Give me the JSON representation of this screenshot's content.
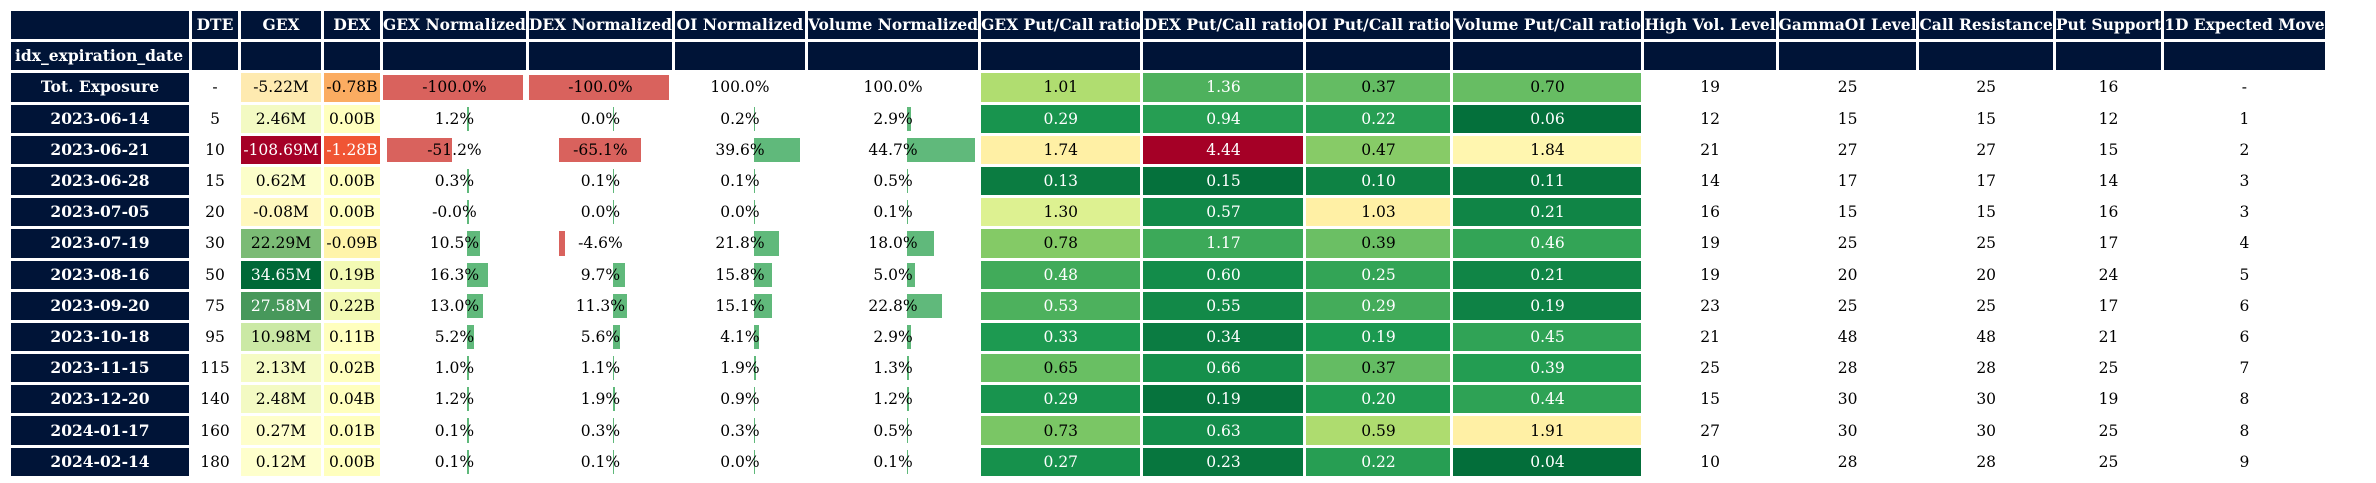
{
  "table": {
    "index_name": "idx_expiration_date",
    "columns": [
      "DTE",
      "GEX",
      "DEX",
      "GEX Normalized",
      "DEX Normalized",
      "OI Normalized",
      "Volume Normalized",
      "GEX Put/Call ratio",
      "DEX Put/Call ratio",
      "OI Put/Call ratio",
      "Volume Put/Call ratio",
      "High Vol. Level",
      "GammaOI Level",
      "Call Resistance",
      "Put Support",
      "1D Expected Move"
    ],
    "rows": [
      {
        "label": "Tot. Exposure",
        "cells": [
          "-",
          "-5.22M",
          "-0.78B",
          "-100.0%",
          "-100.0%",
          "100.0%",
          "100.0%",
          "1.01",
          "1.36",
          "0.37",
          "0.70",
          "19",
          "25",
          "25",
          "16",
          "-"
        ]
      },
      {
        "label": "2023-06-14",
        "cells": [
          "5",
          "2.46M",
          "0.00B",
          "1.2%",
          "0.0%",
          "0.2%",
          "2.9%",
          "0.29",
          "0.94",
          "0.22",
          "0.06",
          "12",
          "15",
          "15",
          "12",
          "1"
        ]
      },
      {
        "label": "2023-06-21",
        "cells": [
          "10",
          "-108.69M",
          "-1.28B",
          "-51.2%",
          "-65.1%",
          "39.6%",
          "44.7%",
          "1.74",
          "4.44",
          "0.47",
          "1.84",
          "21",
          "27",
          "27",
          "15",
          "2"
        ]
      },
      {
        "label": "2023-06-28",
        "cells": [
          "15",
          "0.62M",
          "0.00B",
          "0.3%",
          "0.1%",
          "0.1%",
          "0.5%",
          "0.13",
          "0.15",
          "0.10",
          "0.11",
          "14",
          "17",
          "17",
          "14",
          "3"
        ]
      },
      {
        "label": "2023-07-05",
        "cells": [
          "20",
          "-0.08M",
          "0.00B",
          "-0.0%",
          "0.0%",
          "0.0%",
          "0.1%",
          "1.30",
          "0.57",
          "1.03",
          "0.21",
          "16",
          "15",
          "15",
          "16",
          "3"
        ]
      },
      {
        "label": "2023-07-19",
        "cells": [
          "30",
          "22.29M",
          "-0.09B",
          "10.5%",
          "-4.6%",
          "21.8%",
          "18.0%",
          "0.78",
          "1.17",
          "0.39",
          "0.46",
          "19",
          "25",
          "25",
          "17",
          "4"
        ]
      },
      {
        "label": "2023-08-16",
        "cells": [
          "50",
          "34.65M",
          "0.19B",
          "16.3%",
          "9.7%",
          "15.8%",
          "5.0%",
          "0.48",
          "0.60",
          "0.25",
          "0.21",
          "19",
          "20",
          "20",
          "24",
          "5"
        ]
      },
      {
        "label": "2023-09-20",
        "cells": [
          "75",
          "27.58M",
          "0.22B",
          "13.0%",
          "11.3%",
          "15.1%",
          "22.8%",
          "0.53",
          "0.55",
          "0.29",
          "0.19",
          "23",
          "25",
          "25",
          "17",
          "6"
        ]
      },
      {
        "label": "2023-10-18",
        "cells": [
          "95",
          "10.98M",
          "0.11B",
          "5.2%",
          "5.6%",
          "4.1%",
          "2.9%",
          "0.33",
          "0.34",
          "0.19",
          "0.45",
          "21",
          "48",
          "48",
          "21",
          "6"
        ]
      },
      {
        "label": "2023-11-15",
        "cells": [
          "115",
          "2.13M",
          "0.02B",
          "1.0%",
          "1.1%",
          "1.9%",
          "1.3%",
          "0.65",
          "0.66",
          "0.37",
          "0.39",
          "25",
          "28",
          "28",
          "25",
          "7"
        ]
      },
      {
        "label": "2023-12-20",
        "cells": [
          "140",
          "2.48M",
          "0.04B",
          "1.2%",
          "1.9%",
          "0.9%",
          "1.2%",
          "0.29",
          "0.19",
          "0.20",
          "0.44",
          "15",
          "30",
          "30",
          "19",
          "8"
        ]
      },
      {
        "label": "2024-01-17",
        "cells": [
          "160",
          "0.27M",
          "0.01B",
          "0.1%",
          "0.3%",
          "0.3%",
          "0.5%",
          "0.73",
          "0.63",
          "0.59",
          "1.91",
          "27",
          "30",
          "30",
          "25",
          "8"
        ]
      },
      {
        "label": "2024-02-14",
        "cells": [
          "180",
          "0.12M",
          "0.00B",
          "0.1%",
          "0.1%",
          "0.0%",
          "0.1%",
          "0.27",
          "0.23",
          "0.22",
          "0.04",
          "10",
          "28",
          "28",
          "25",
          "9"
        ]
      }
    ]
  },
  "chart_data": {
    "type": "table",
    "index_name": "idx_expiration_date",
    "columns": [
      "DTE",
      "GEX",
      "DEX",
      "GEX Normalized",
      "DEX Normalized",
      "OI Normalized",
      "Volume Normalized",
      "GEX Put/Call ratio",
      "DEX Put/Call ratio",
      "OI Put/Call ratio",
      "Volume Put/Call ratio",
      "High Vol. Level",
      "GammaOI Level",
      "Call Resistance",
      "Put Support",
      "1D Expected Move"
    ],
    "row_labels": [
      "Tot. Exposure",
      "2023-06-14",
      "2023-06-21",
      "2023-06-28",
      "2023-07-05",
      "2023-07-19",
      "2023-08-16",
      "2023-09-20",
      "2023-10-18",
      "2023-11-15",
      "2023-12-20",
      "2024-01-17",
      "2024-02-14"
    ],
    "GEX_millions": [
      -5.22,
      2.46,
      -108.69,
      0.62,
      -0.08,
      22.29,
      34.65,
      27.58,
      10.98,
      2.13,
      2.48,
      0.27,
      0.12
    ],
    "DEX_billions": [
      -0.78,
      0.0,
      -1.28,
      0.0,
      0.0,
      -0.09,
      0.19,
      0.22,
      0.11,
      0.02,
      0.04,
      0.01,
      0.0
    ],
    "GEX_normalized_pct": [
      -100.0,
      1.2,
      -51.2,
      0.3,
      -0.0,
      10.5,
      16.3,
      13.0,
      5.2,
      1.0,
      1.2,
      0.1,
      0.1
    ],
    "DEX_normalized_pct": [
      -100.0,
      0.0,
      -65.1,
      0.1,
      0.0,
      -4.6,
      9.7,
      11.3,
      5.6,
      1.1,
      1.9,
      0.3,
      0.1
    ],
    "OI_normalized_pct": [
      100.0,
      0.2,
      39.6,
      0.1,
      0.0,
      21.8,
      15.8,
      15.1,
      4.1,
      1.9,
      0.9,
      0.3,
      0.0
    ],
    "Volume_normalized_pct": [
      100.0,
      2.9,
      44.7,
      0.5,
      0.1,
      18.0,
      5.0,
      22.8,
      2.9,
      1.3,
      1.2,
      0.5,
      0.1
    ],
    "GEX_put_call_ratio": [
      1.01,
      0.29,
      1.74,
      0.13,
      1.3,
      0.78,
      0.48,
      0.53,
      0.33,
      0.65,
      0.29,
      0.73,
      0.27
    ],
    "DEX_put_call_ratio": [
      1.36,
      0.94,
      4.44,
      0.15,
      0.57,
      1.17,
      0.6,
      0.55,
      0.34,
      0.66,
      0.19,
      0.63,
      0.23
    ],
    "OI_put_call_ratio": [
      0.37,
      0.22,
      0.47,
      0.1,
      1.03,
      0.39,
      0.25,
      0.29,
      0.19,
      0.37,
      0.2,
      0.59,
      0.22
    ],
    "Volume_put_call_ratio": [
      0.7,
      0.06,
      1.84,
      0.11,
      0.21,
      0.46,
      0.21,
      0.19,
      0.45,
      0.39,
      0.44,
      1.91,
      0.04
    ],
    "colors": {
      "header_bg": "#001437",
      "header_fg": "#ffffff",
      "neg_bar": "#d9625d",
      "pos_bar": "#60b97b"
    }
  }
}
